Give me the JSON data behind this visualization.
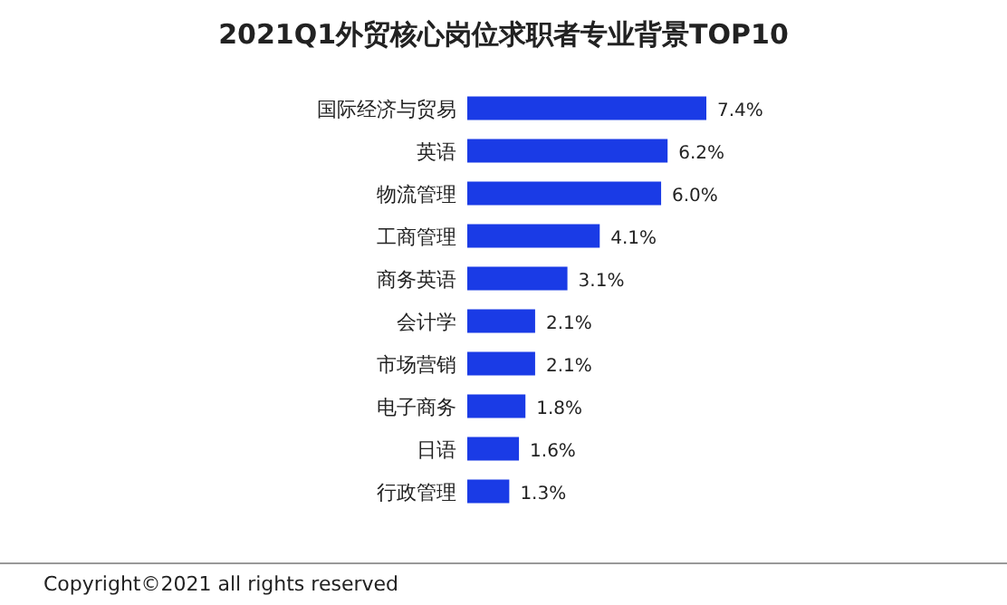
{
  "chart_data": {
    "type": "bar",
    "orientation": "horizontal",
    "title": "2021Q1外贸核心岗位求职者专业背景TOP10",
    "categories": [
      "国际经济与贸易",
      "英语",
      "物流管理",
      "工商管理",
      "商务英语",
      "会计学",
      "市场营销",
      "电子商务",
      "日语",
      "行政管理"
    ],
    "values": [
      7.4,
      6.2,
      6.0,
      4.1,
      3.1,
      2.1,
      2.1,
      1.8,
      1.6,
      1.3
    ],
    "value_labels": [
      "7.4%",
      "6.2%",
      "6.0%",
      "4.1%",
      "3.1%",
      "2.1%",
      "2.1%",
      "1.8%",
      "1.6%",
      "1.3%"
    ],
    "color": "#1a3be6",
    "annotations": [
      "Copyright©2021 all rights reserved"
    ]
  }
}
